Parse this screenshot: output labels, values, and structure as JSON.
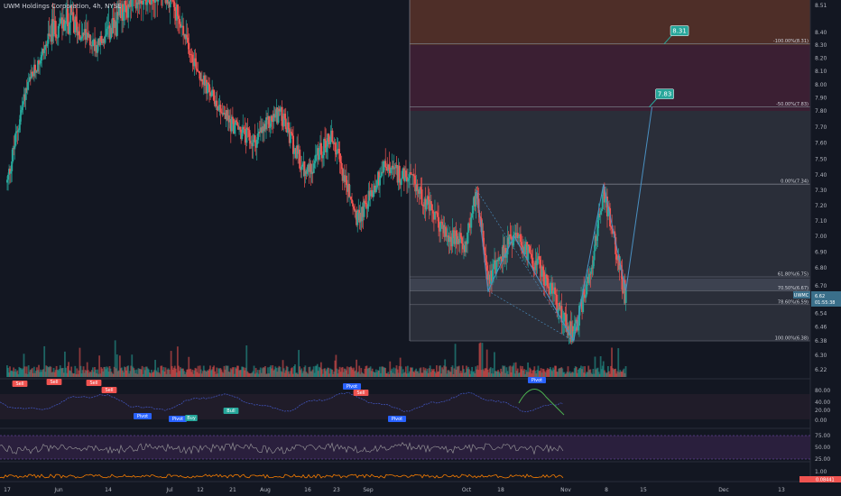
{
  "header": {
    "title": "UWM Holdings Corporation, 4h, NYSE"
  },
  "price_axis": {
    "ticks": [
      "8.51",
      "8.40",
      "8.30",
      "8.20",
      "8.10",
      "8.00",
      "7.90",
      "7.80",
      "7.70",
      "7.60",
      "7.50",
      "7.40",
      "7.30",
      "7.20",
      "7.10",
      "7.00",
      "6.90",
      "6.80",
      "6.70",
      "6.62",
      "6.54",
      "6.46",
      "6.38",
      "6.30",
      "6.22"
    ],
    "symbol_tag": "UWMC",
    "last_price": "6.62",
    "countdown": "01:55:38"
  },
  "time_axis": {
    "labels": [
      "17",
      "Jun",
      "14",
      "Jul",
      "12",
      "21",
      "Aug",
      "16",
      "23",
      "Sep",
      "Oct",
      "18",
      "Nov",
      "8",
      "15",
      "Dec",
      "13"
    ]
  },
  "fib_levels": [
    {
      "label": "-100.00%(8.31)"
    },
    {
      "label": "-50.00%(7.83)"
    },
    {
      "label": "0.00%(7.34)"
    },
    {
      "label": "61.80%(6.75)"
    },
    {
      "label": "70.50%(6.67)"
    },
    {
      "label": "78.60%(6.59)"
    },
    {
      "label": "100.00%(6.38)"
    }
  ],
  "targets": [
    {
      "label": "8.31"
    },
    {
      "label": "7.83"
    }
  ],
  "oscillator1": {
    "ticks": [
      "80.00",
      "40.00",
      "20.00",
      "0.00"
    ]
  },
  "oscillator2": {
    "ticks": [
      "75.00",
      "50.00",
      "25.00"
    ]
  },
  "oscillator3": {
    "ticks": [
      "1.00"
    ],
    "value_tag": "0.08441"
  },
  "signals": [
    {
      "label": "Sell"
    },
    {
      "label": "Sell"
    },
    {
      "label": "Sell"
    },
    {
      "label": "Sell"
    },
    {
      "label": "Sell"
    },
    {
      "label": "Pivot"
    },
    {
      "label": "Pivot"
    },
    {
      "label": "Pivot"
    },
    {
      "label": "Pivot"
    },
    {
      "label": "Pivot"
    },
    {
      "label": "Buy"
    },
    {
      "label": "Bull"
    }
  ],
  "colors": {
    "background": "#131722",
    "up": "#26a69a",
    "down": "#ef5350",
    "fib_zone": "#363a45",
    "zone_top": "#4e2e28",
    "zone_mid": "#3b1f33",
    "pattern": "#4a90c2",
    "target": "#26a69a",
    "osc_line": "#3f51b5",
    "osc2_fill": "#2a1f3d",
    "osc3_line": "#f57c00"
  },
  "chart_data": {
    "type": "candlestick",
    "title": "UWM Holdings Corporation, 4h, NYSE",
    "ylim": [
      6.22,
      8.51
    ],
    "x_start": "2024-05-17",
    "x_end": "2024-12-18",
    "last_close": 6.62,
    "fib_retracement": {
      "levels": [
        {
          "pct": -100.0,
          "price": 8.31
        },
        {
          "pct": -50.0,
          "price": 7.83
        },
        {
          "pct": 0.0,
          "price": 7.34
        },
        {
          "pct": 61.8,
          "price": 6.75
        },
        {
          "pct": 70.5,
          "price": 6.67
        },
        {
          "pct": 78.6,
          "price": 6.59
        },
        {
          "pct": 100.0,
          "price": 6.38
        }
      ]
    },
    "pattern_points": [
      {
        "t": "2024-09-20",
        "price": 7.3
      },
      {
        "t": "2024-09-23",
        "price": 6.67
      },
      {
        "t": "2024-09-30",
        "price": 7.0
      },
      {
        "t": "2024-10-16",
        "price": 6.38
      },
      {
        "t": "2024-10-24",
        "price": 7.34
      },
      {
        "t": "2024-10-30",
        "price": 6.67
      },
      {
        "t": "2024-11-06",
        "price": 7.83
      }
    ],
    "targets": [
      8.31,
      7.83
    ],
    "trend_path": [
      {
        "t": "2024-05-17",
        "price": 7.35
      },
      {
        "t": "2024-05-22",
        "price": 7.95
      },
      {
        "t": "2024-05-29",
        "price": 8.4
      },
      {
        "t": "2024-06-03",
        "price": 8.45
      },
      {
        "t": "2024-06-10",
        "price": 8.3
      },
      {
        "t": "2024-06-20",
        "price": 8.55
      },
      {
        "t": "2024-06-28",
        "price": 8.6
      },
      {
        "t": "2024-07-03",
        "price": 8.4
      },
      {
        "t": "2024-07-09",
        "price": 8.0
      },
      {
        "t": "2024-07-15",
        "price": 7.75
      },
      {
        "t": "2024-07-22",
        "price": 7.6
      },
      {
        "t": "2024-07-29",
        "price": 7.8
      },
      {
        "t": "2024-08-05",
        "price": 7.4
      },
      {
        "t": "2024-08-12",
        "price": 7.65
      },
      {
        "t": "2024-08-19",
        "price": 7.1
      },
      {
        "t": "2024-08-26",
        "price": 7.45
      },
      {
        "t": "2024-09-03",
        "price": 7.35
      },
      {
        "t": "2024-09-12",
        "price": 7.0
      },
      {
        "t": "2024-09-17",
        "price": 6.95
      },
      {
        "t": "2024-09-20",
        "price": 7.3
      },
      {
        "t": "2024-09-23",
        "price": 6.75
      },
      {
        "t": "2024-09-30",
        "price": 7.0
      },
      {
        "t": "2024-10-07",
        "price": 6.8
      },
      {
        "t": "2024-10-16",
        "price": 6.4
      },
      {
        "t": "2024-10-21",
        "price": 6.85
      },
      {
        "t": "2024-10-24",
        "price": 7.3
      },
      {
        "t": "2024-10-30",
        "price": 6.62
      }
    ]
  }
}
